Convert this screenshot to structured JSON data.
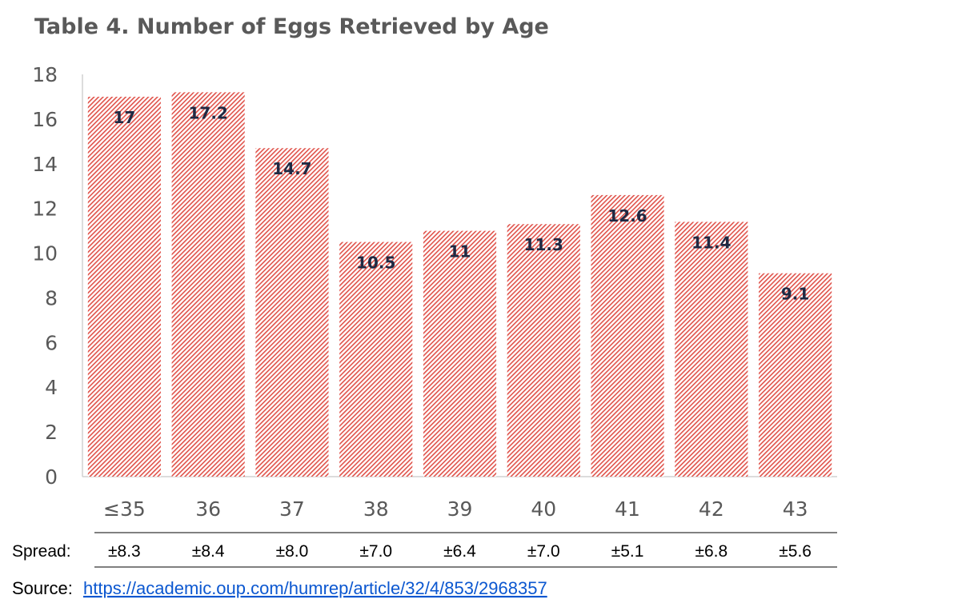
{
  "chart_data": {
    "type": "bar",
    "title": "Table 4. Number of Eggs Retrieved by Age",
    "categories": [
      "≤35",
      "36",
      "37",
      "38",
      "39",
      "40",
      "41",
      "42",
      "43"
    ],
    "values": [
      17,
      17.2,
      14.7,
      10.5,
      11,
      11.3,
      12.6,
      11.4,
      9.1
    ],
    "data_labels": [
      "17",
      "17.2",
      "14.7",
      "10.5",
      "11",
      "11.3",
      "12.6",
      "11.4",
      "9.1"
    ],
    "ylim": [
      0,
      18
    ],
    "yticks": [
      "0",
      "2",
      "4",
      "6",
      "8",
      "10",
      "12",
      "14",
      "16",
      "18"
    ],
    "xlabel": "",
    "ylabel": "",
    "grid": false,
    "bar_fill": "red-hatched",
    "bar_color": "#e0524a"
  },
  "spread": {
    "label": "Spread:",
    "values": [
      "±8.3",
      "±8.4",
      "±8.0",
      "±7.0",
      "±6.4",
      "±7.0",
      "±5.1",
      "±6.8",
      "±5.6"
    ]
  },
  "source": {
    "label": "Source:",
    "link": "https://academic.oup.com/humrep/article/32/4/853/2968357"
  }
}
